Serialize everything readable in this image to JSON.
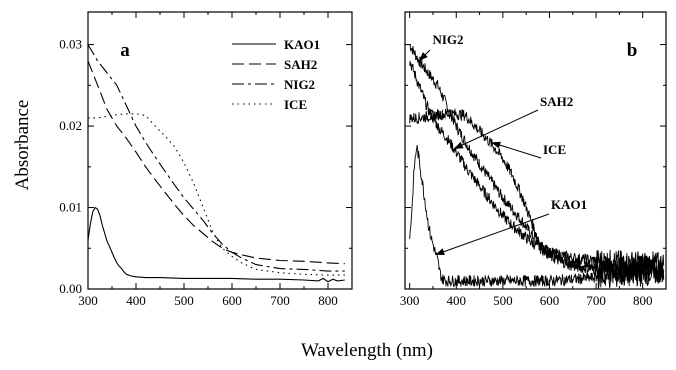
{
  "chart_data": [
    {
      "panel": "a",
      "type": "line",
      "xlabel": "Wavelength (nm)",
      "ylabel": "Absorbance",
      "xlim": [
        300,
        850
      ],
      "ylim": [
        0,
        0.034
      ],
      "xticks": [
        "300",
        "400",
        "500",
        "600",
        "700",
        "800"
      ],
      "yticks": [
        "0.00",
        "0.01",
        "0.02",
        "0.03"
      ],
      "legend": "top-right",
      "series": [
        {
          "name": "KAO1",
          "style": "solid",
          "x": [
            300,
            305,
            310,
            315,
            320,
            325,
            330,
            335,
            340,
            345,
            350,
            355,
            360,
            365,
            370,
            375,
            380,
            390,
            400,
            420,
            450,
            500,
            550,
            600,
            650,
            700,
            750,
            780,
            790,
            800,
            810,
            820,
            835
          ],
          "y": [
            0.006,
            0.008,
            0.0095,
            0.01,
            0.0098,
            0.009,
            0.0078,
            0.0068,
            0.0058,
            0.0052,
            0.0045,
            0.0038,
            0.0032,
            0.0028,
            0.0025,
            0.0021,
            0.0018,
            0.0016,
            0.0015,
            0.0014,
            0.0014,
            0.0013,
            0.0013,
            0.0013,
            0.0012,
            0.0012,
            0.0011,
            0.001,
            0.0013,
            0.0009,
            0.0012,
            0.001,
            0.0011
          ]
        },
        {
          "name": "SAH2",
          "style": "dashed",
          "x": [
            300,
            320,
            340,
            360,
            380,
            400,
            420,
            440,
            460,
            480,
            500,
            520,
            540,
            560,
            580,
            600,
            620,
            650,
            700,
            750,
            800,
            835
          ],
          "y": [
            0.028,
            0.025,
            0.022,
            0.02,
            0.0185,
            0.0168,
            0.015,
            0.0134,
            0.0119,
            0.0104,
            0.009,
            0.0078,
            0.0068,
            0.0058,
            0.005,
            0.0045,
            0.0042,
            0.0038,
            0.0035,
            0.0034,
            0.0032,
            0.0031
          ]
        },
        {
          "name": "NIG2",
          "style": "dashdot",
          "x": [
            300,
            320,
            340,
            360,
            380,
            400,
            420,
            440,
            460,
            480,
            500,
            520,
            540,
            560,
            580,
            600,
            620,
            650,
            700,
            750,
            800,
            835
          ],
          "y": [
            0.03,
            0.028,
            0.0265,
            0.025,
            0.0225,
            0.02,
            0.018,
            0.0162,
            0.0145,
            0.0128,
            0.0112,
            0.0098,
            0.0084,
            0.0068,
            0.0055,
            0.0045,
            0.0038,
            0.003,
            0.0025,
            0.0024,
            0.0022,
            0.0022
          ]
        },
        {
          "name": "ICE",
          "style": "dotted",
          "x": [
            300,
            320,
            340,
            360,
            380,
            400,
            420,
            440,
            460,
            480,
            500,
            520,
            540,
            560,
            580,
            600,
            620,
            650,
            700,
            750,
            800,
            835
          ],
          "y": [
            0.021,
            0.021,
            0.0212,
            0.0214,
            0.0215,
            0.0215,
            0.0213,
            0.02,
            0.0188,
            0.0175,
            0.0155,
            0.013,
            0.01,
            0.007,
            0.005,
            0.004,
            0.0032,
            0.0024,
            0.002,
            0.0018,
            0.0017,
            0.0017
          ]
        }
      ]
    },
    {
      "panel": "b",
      "type": "line",
      "xlabel": "Wavelength (nm)",
      "xlim": [
        290,
        850
      ],
      "ylim": [
        0,
        0.034
      ],
      "xticks": [
        "300",
        "400",
        "500",
        "600",
        "700",
        "800"
      ],
      "noisy": true,
      "series": [
        {
          "name": "NIG2",
          "x": [
            300,
            320,
            340,
            360,
            380,
            400,
            420,
            440,
            460,
            480,
            500,
            520,
            540,
            560,
            580,
            600,
            650,
            700,
            750,
            800,
            845
          ],
          "y": [
            0.03,
            0.028,
            0.0265,
            0.025,
            0.0225,
            0.02,
            0.018,
            0.0162,
            0.0145,
            0.0128,
            0.0112,
            0.0098,
            0.0084,
            0.0068,
            0.0055,
            0.0045,
            0.0032,
            0.0027,
            0.0025,
            0.0026,
            0.0027
          ]
        },
        {
          "name": "SAH2",
          "x": [
            300,
            320,
            340,
            360,
            380,
            400,
            420,
            440,
            460,
            480,
            500,
            520,
            540,
            560,
            580,
            600,
            650,
            700,
            750,
            800,
            845
          ],
          "y": [
            0.028,
            0.025,
            0.022,
            0.02,
            0.0185,
            0.0168,
            0.015,
            0.0134,
            0.0119,
            0.0104,
            0.009,
            0.0078,
            0.0068,
            0.0058,
            0.005,
            0.0045,
            0.0038,
            0.0035,
            0.0033,
            0.0032,
            0.0031
          ]
        },
        {
          "name": "ICE",
          "x": [
            300,
            320,
            340,
            360,
            380,
            400,
            420,
            440,
            460,
            480,
            500,
            520,
            540,
            560,
            580,
            600,
            650,
            700,
            750,
            800,
            845
          ],
          "y": [
            0.021,
            0.021,
            0.0212,
            0.0214,
            0.0215,
            0.0215,
            0.0213,
            0.02,
            0.0188,
            0.0175,
            0.016,
            0.014,
            0.0115,
            0.0085,
            0.0055,
            0.004,
            0.0028,
            0.0024,
            0.0022,
            0.0022,
            0.0023
          ]
        },
        {
          "name": "KAO1",
          "x": [
            300,
            305,
            310,
            315,
            320,
            325,
            330,
            335,
            340,
            345,
            350,
            355,
            360,
            365,
            370,
            380,
            400,
            450,
            500,
            550,
            600,
            650,
            700,
            750,
            800,
            845
          ],
          "y": [
            0.006,
            0.01,
            0.015,
            0.0175,
            0.016,
            0.014,
            0.012,
            0.01,
            0.008,
            0.0065,
            0.0055,
            0.0045,
            0.0035,
            0.002,
            0.0012,
            0.001,
            0.001,
            0.001,
            0.001,
            0.001,
            0.001,
            0.0012,
            0.0014,
            0.0016,
            0.0018,
            0.002
          ]
        }
      ],
      "annotations": [
        {
          "text": "NIG2",
          "target_x": 320,
          "target_y": 0.028
        },
        {
          "text": "SAH2",
          "target_x": 395,
          "target_y": 0.0172
        },
        {
          "text": "ICE",
          "target_x": 475,
          "target_y": 0.018
        },
        {
          "text": "KAO1",
          "target_x": 355,
          "target_y": 0.0042
        }
      ]
    }
  ],
  "panels": {
    "a": "a",
    "b": "b"
  },
  "axis": {
    "ylabel": "Absorbance",
    "xlabel": "Wavelength (nm)"
  }
}
